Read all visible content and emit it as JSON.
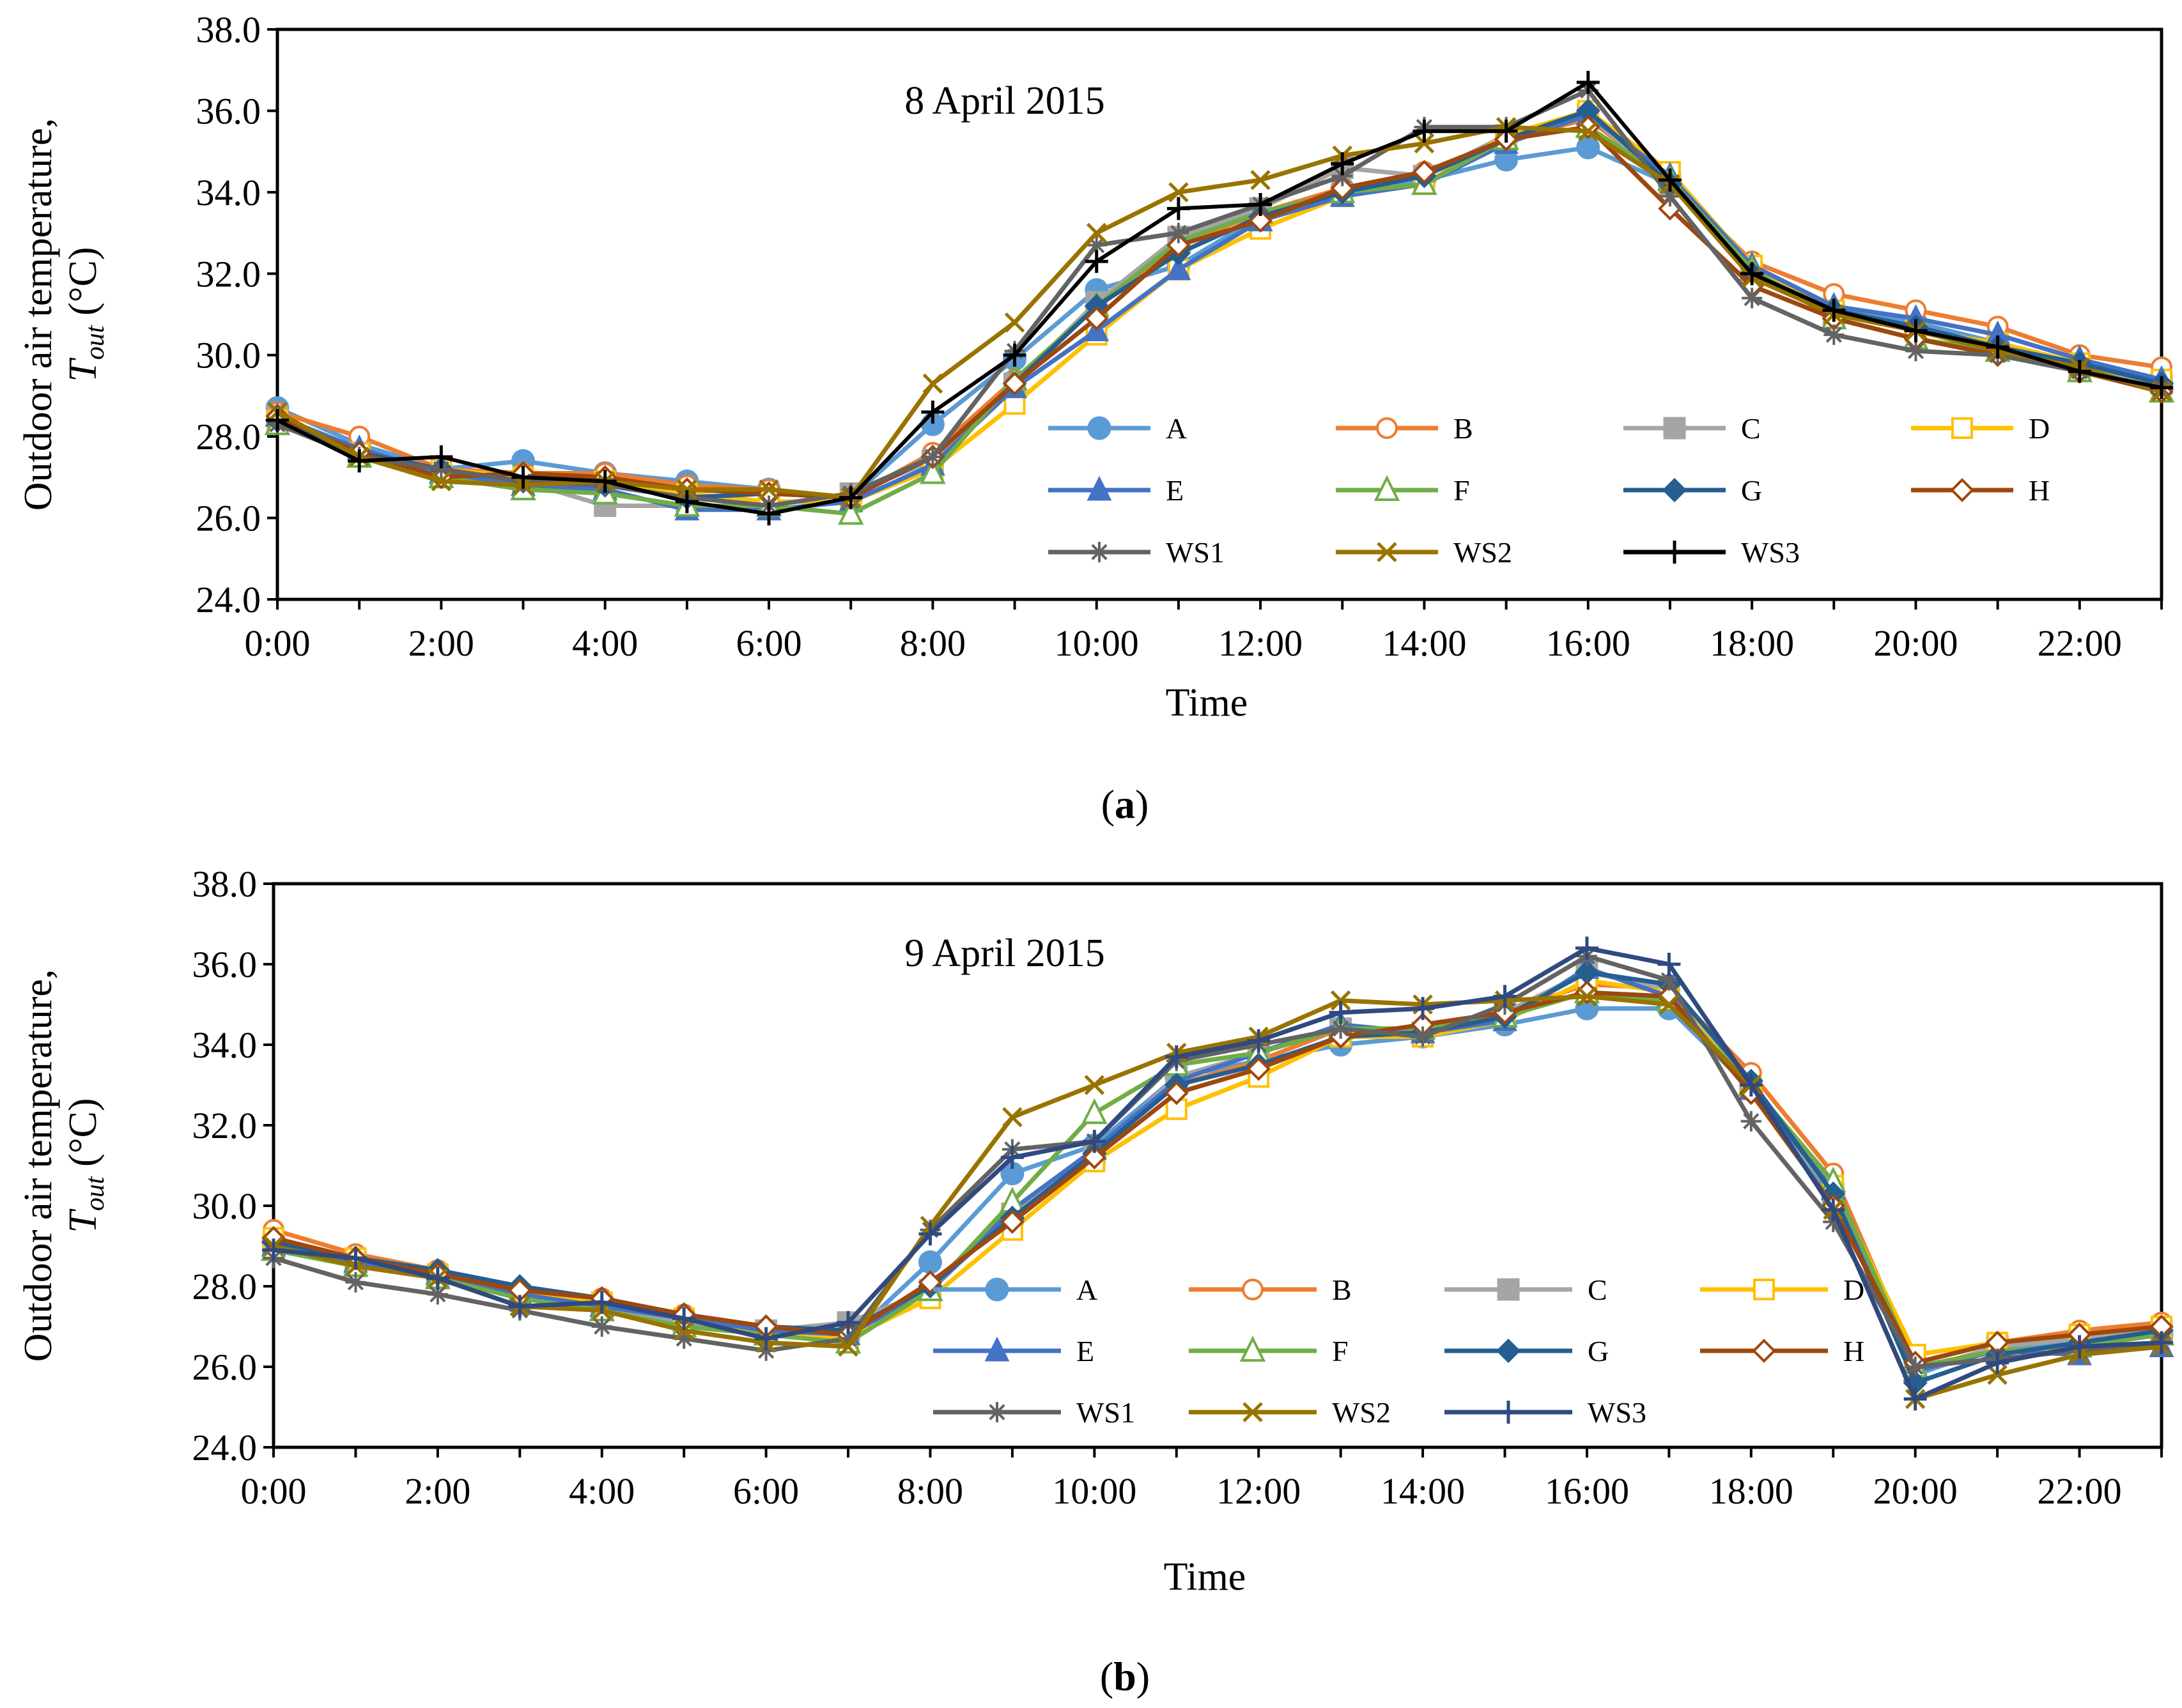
{
  "chart_data": [
    {
      "panel_label": "a",
      "type": "line",
      "title": "8 April 2015",
      "xlabel": "Time",
      "ylabel_line1": "Outdoor air temperature,",
      "ylabel_symbol": "T",
      "ylabel_sub": "out",
      "ylabel_unit": "(°C)",
      "ylim": [
        24.0,
        38.0
      ],
      "y_ticks": [
        "24.0",
        "26.0",
        "28.0",
        "30.0",
        "32.0",
        "34.0",
        "36.0",
        "38.0"
      ],
      "x_ticks": [
        "0:00",
        "2:00",
        "4:00",
        "6:00",
        "8:00",
        "10:00",
        "12:00",
        "14:00",
        "16:00",
        "18:00",
        "20:00",
        "22:00"
      ],
      "x": [
        0,
        1,
        2,
        3,
        4,
        5,
        6,
        7,
        8,
        9,
        10,
        11,
        12,
        13,
        14,
        15,
        16,
        17,
        18,
        19,
        20,
        21,
        22,
        23
      ],
      "legend_position": "lower-right",
      "series": [
        {
          "name": "A",
          "color": "#5B9BD5",
          "marker": "circle-filled",
          "values": [
            28.7,
            27.8,
            27.2,
            27.4,
            27.1,
            26.9,
            26.7,
            26.5,
            28.3,
            29.9,
            31.6,
            32.2,
            33.4,
            34.1,
            34.3,
            34.8,
            35.1,
            34.2,
            32.1,
            31.1,
            30.8,
            30.3,
            29.8,
            29.3
          ]
        },
        {
          "name": "B",
          "color": "#ED7D31",
          "marker": "circle-open",
          "values": [
            28.6,
            28.0,
            27.2,
            27.1,
            27.1,
            26.8,
            26.7,
            26.5,
            27.6,
            29.4,
            31.2,
            32.7,
            33.5,
            34.1,
            34.5,
            35.3,
            35.8,
            34.3,
            32.3,
            31.5,
            31.1,
            30.7,
            30.0,
            29.7
          ]
        },
        {
          "name": "C",
          "color": "#A5A5A5",
          "marker": "square-filled",
          "values": [
            28.5,
            27.6,
            27.0,
            26.9,
            26.3,
            26.3,
            26.3,
            26.6,
            27.4,
            29.3,
            31.3,
            32.9,
            33.6,
            34.6,
            34.4,
            35.4,
            35.9,
            34.2,
            32.0,
            31.0,
            30.6,
            30.3,
            29.7,
            29.3
          ]
        },
        {
          "name": "D",
          "color": "#FFC000",
          "marker": "square-open",
          "values": [
            28.4,
            27.6,
            27.2,
            27.0,
            26.9,
            26.6,
            26.4,
            26.4,
            27.2,
            28.8,
            30.5,
            32.1,
            33.1,
            33.9,
            34.2,
            35.4,
            36.0,
            34.5,
            32.2,
            31.1,
            30.6,
            30.3,
            29.8,
            29.4
          ]
        },
        {
          "name": "E",
          "color": "#4472C4",
          "marker": "triangle-filled",
          "values": [
            28.5,
            27.7,
            27.1,
            26.8,
            26.7,
            26.2,
            26.2,
            26.4,
            27.3,
            29.2,
            30.6,
            32.1,
            33.3,
            33.9,
            34.2,
            35.2,
            35.9,
            34.4,
            32.2,
            31.2,
            30.9,
            30.5,
            29.9,
            29.4
          ]
        },
        {
          "name": "F",
          "color": "#70AD47",
          "marker": "triangle-open",
          "values": [
            28.3,
            27.5,
            27.0,
            26.7,
            26.6,
            26.3,
            26.3,
            26.1,
            27.1,
            29.4,
            31.2,
            32.8,
            33.5,
            34.0,
            34.2,
            35.3,
            35.6,
            34.3,
            32.1,
            30.9,
            30.4,
            30.1,
            29.6,
            29.1
          ]
        },
        {
          "name": "G",
          "color": "#255E91",
          "marker": "diamond-filled",
          "values": [
            28.4,
            27.6,
            27.2,
            26.9,
            26.8,
            26.5,
            26.6,
            26.5,
            27.5,
            29.3,
            31.2,
            32.5,
            33.4,
            34.0,
            34.4,
            35.3,
            36.0,
            34.2,
            32.0,
            31.1,
            30.7,
            30.2,
            29.8,
            29.3
          ]
        },
        {
          "name": "H",
          "color": "#9E480E",
          "marker": "diamond-open",
          "values": [
            28.5,
            27.6,
            27.0,
            27.1,
            27.0,
            26.7,
            26.6,
            26.5,
            27.5,
            29.3,
            30.9,
            32.7,
            33.3,
            34.1,
            34.5,
            35.3,
            35.6,
            33.6,
            31.7,
            30.9,
            30.4,
            30.0,
            29.6,
            29.1
          ]
        },
        {
          "name": "WS1",
          "color": "#636363",
          "marker": "asterisk",
          "values": [
            28.3,
            27.5,
            27.2,
            26.9,
            26.8,
            26.5,
            26.3,
            26.6,
            27.5,
            30.1,
            32.7,
            33.0,
            33.7,
            34.4,
            35.6,
            35.6,
            36.5,
            33.9,
            31.4,
            30.5,
            30.1,
            30.0,
            29.6,
            29.2
          ]
        },
        {
          "name": "WS2",
          "color": "#997300",
          "marker": "x",
          "values": [
            28.6,
            27.5,
            26.9,
            26.8,
            26.9,
            26.7,
            26.7,
            26.5,
            29.3,
            30.8,
            33.0,
            34.0,
            34.3,
            34.9,
            35.2,
            35.6,
            35.5,
            34.2,
            31.9,
            31.0,
            30.6,
            30.1,
            29.7,
            29.1
          ]
        },
        {
          "name": "WS3",
          "color": "#000000",
          "marker": "plus",
          "values": [
            28.4,
            27.4,
            27.5,
            27.0,
            26.9,
            26.4,
            26.1,
            26.5,
            28.6,
            30.0,
            32.3,
            33.6,
            33.7,
            34.7,
            35.5,
            35.5,
            36.7,
            34.3,
            32.0,
            31.1,
            30.6,
            30.2,
            29.6,
            29.2
          ]
        }
      ]
    },
    {
      "panel_label": "b",
      "type": "line",
      "title": "9 April 2015",
      "xlabel": "Time",
      "ylabel_line1": "Outdoor air temperature,",
      "ylabel_symbol": "T",
      "ylabel_sub": "out",
      "ylabel_unit": "(°C)",
      "ylim": [
        24.0,
        38.0
      ],
      "y_ticks": [
        "24.0",
        "26.0",
        "28.0",
        "30.0",
        "32.0",
        "34.0",
        "36.0",
        "38.0"
      ],
      "x_ticks": [
        "0:00",
        "2:00",
        "4:00",
        "6:00",
        "8:00",
        "10:00",
        "12:00",
        "14:00",
        "16:00",
        "18:00",
        "20:00",
        "22:00"
      ],
      "x": [
        0,
        1,
        2,
        3,
        4,
        5,
        6,
        7,
        8,
        9,
        10,
        11,
        12,
        13,
        14,
        15,
        16,
        17,
        18,
        19,
        20,
        21,
        22,
        23
      ],
      "legend_position": "lower-right",
      "series": [
        {
          "name": "A",
          "color": "#5B9BD5",
          "marker": "circle-filled",
          "values": [
            29.1,
            28.6,
            28.2,
            27.8,
            27.5,
            27.1,
            26.8,
            26.7,
            28.6,
            30.8,
            31.5,
            33.2,
            33.6,
            34.0,
            34.2,
            34.5,
            34.9,
            34.9,
            32.9,
            30.2,
            25.8,
            26.5,
            26.6,
            26.8
          ]
        },
        {
          "name": "B",
          "color": "#ED7D31",
          "marker": "circle-open",
          "values": [
            29.4,
            28.8,
            28.4,
            27.9,
            27.7,
            27.3,
            26.9,
            26.8,
            28.0,
            29.9,
            31.4,
            33.0,
            33.6,
            34.4,
            34.4,
            34.8,
            35.5,
            35.4,
            33.3,
            30.8,
            26.1,
            26.6,
            26.9,
            27.1
          ]
        },
        {
          "name": "C",
          "color": "#A5A5A5",
          "marker": "square-filled",
          "values": [
            29.0,
            28.6,
            28.2,
            27.7,
            27.5,
            27.1,
            26.9,
            27.1,
            27.9,
            29.8,
            31.3,
            33.2,
            33.8,
            34.4,
            34.3,
            34.8,
            35.8,
            35.4,
            32.9,
            30.3,
            25.9,
            26.5,
            26.7,
            26.9
          ]
        },
        {
          "name": "D",
          "color": "#FFC000",
          "marker": "square-open",
          "values": [
            29.2,
            28.7,
            28.3,
            27.8,
            27.6,
            27.2,
            26.8,
            26.7,
            27.7,
            29.4,
            31.1,
            32.4,
            33.2,
            34.2,
            34.2,
            34.6,
            35.6,
            35.3,
            32.9,
            30.5,
            26.3,
            26.6,
            26.8,
            27.0
          ]
        },
        {
          "name": "E",
          "color": "#4472C4",
          "marker": "triangle-filled",
          "values": [
            29.0,
            28.6,
            28.3,
            27.8,
            27.5,
            27.2,
            26.9,
            26.8,
            27.9,
            29.9,
            31.4,
            33.1,
            33.8,
            34.5,
            34.3,
            34.6,
            35.9,
            35.2,
            32.9,
            30.4,
            25.9,
            26.4,
            26.3,
            26.5
          ]
        },
        {
          "name": "F",
          "color": "#70AD47",
          "marker": "triangle-open",
          "values": [
            28.9,
            28.5,
            28.2,
            27.7,
            27.4,
            27.0,
            26.8,
            26.6,
            27.9,
            30.1,
            32.3,
            33.5,
            33.8,
            34.4,
            34.4,
            34.7,
            35.3,
            35.1,
            33.0,
            30.6,
            26.0,
            26.4,
            26.5,
            26.8
          ]
        },
        {
          "name": "G",
          "color": "#255E91",
          "marker": "diamond-filled",
          "values": [
            29.1,
            28.7,
            28.4,
            28.0,
            27.7,
            27.3,
            27.0,
            26.9,
            28.0,
            29.7,
            31.3,
            33.0,
            33.5,
            34.2,
            34.3,
            34.7,
            35.8,
            35.5,
            33.1,
            30.3,
            25.6,
            26.3,
            26.6,
            26.9
          ]
        },
        {
          "name": "H",
          "color": "#9E480E",
          "marker": "diamond-open",
          "values": [
            29.2,
            28.7,
            28.3,
            27.9,
            27.7,
            27.3,
            27.0,
            26.8,
            28.1,
            29.6,
            31.2,
            32.8,
            33.4,
            34.2,
            34.5,
            34.8,
            35.3,
            35.2,
            32.8,
            30.0,
            26.1,
            26.6,
            26.8,
            27.0
          ]
        },
        {
          "name": "WS1",
          "color": "#636363",
          "marker": "asterisk",
          "values": [
            28.7,
            28.1,
            27.8,
            27.4,
            27.0,
            26.7,
            26.4,
            26.7,
            29.4,
            31.4,
            31.6,
            33.6,
            34.0,
            34.4,
            34.2,
            35.0,
            36.2,
            35.6,
            32.1,
            29.6,
            26.0,
            26.2,
            26.4,
            26.6
          ]
        },
        {
          "name": "WS2",
          "color": "#997300",
          "marker": "x",
          "values": [
            29.0,
            28.5,
            28.2,
            27.5,
            27.4,
            26.9,
            26.6,
            26.5,
            29.5,
            32.2,
            33.0,
            33.8,
            34.2,
            35.1,
            35.0,
            35.1,
            35.2,
            35.0,
            33.0,
            29.9,
            25.2,
            25.8,
            26.3,
            26.5
          ]
        },
        {
          "name": "WS3",
          "color": "#2F4A80",
          "marker": "plus",
          "values": [
            28.9,
            28.7,
            28.2,
            27.5,
            27.6,
            27.2,
            26.7,
            27.1,
            29.3,
            31.2,
            31.6,
            33.7,
            34.1,
            34.8,
            34.9,
            35.2,
            36.4,
            36.0,
            33.0,
            29.9,
            25.2,
            26.1,
            26.5,
            26.6
          ]
        }
      ]
    }
  ]
}
